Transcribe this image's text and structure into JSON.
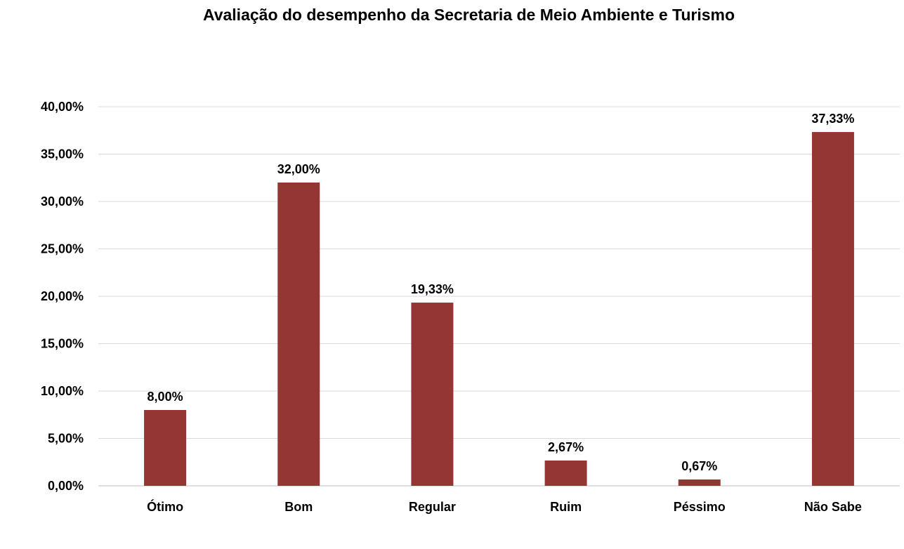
{
  "chart_data": {
    "type": "bar",
    "title": "Avaliação do desempenho da Secretaria de Meio Ambiente e Turismo",
    "xlabel": "",
    "ylabel": "",
    "categories": [
      "Ótimo",
      "Bom",
      "Regular",
      "Ruim",
      "Péssimo",
      "Não Sabe"
    ],
    "values": [
      8.0,
      32.0,
      19.33,
      2.67,
      0.67,
      37.33
    ],
    "data_labels": [
      "8,00%",
      "32,00%",
      "19,33%",
      "2,67%",
      "0,67%",
      "37,33%"
    ],
    "ylim": [
      0,
      40
    ],
    "yticks": [
      0,
      5,
      10,
      15,
      20,
      25,
      30,
      35,
      40
    ],
    "ytick_labels": [
      "0,00%",
      "5,00%",
      "10,00%",
      "15,00%",
      "20,00%",
      "25,00%",
      "30,00%",
      "35,00%",
      "40,00%"
    ],
    "grid": true,
    "legend": "none",
    "bar_color": "#943634"
  }
}
